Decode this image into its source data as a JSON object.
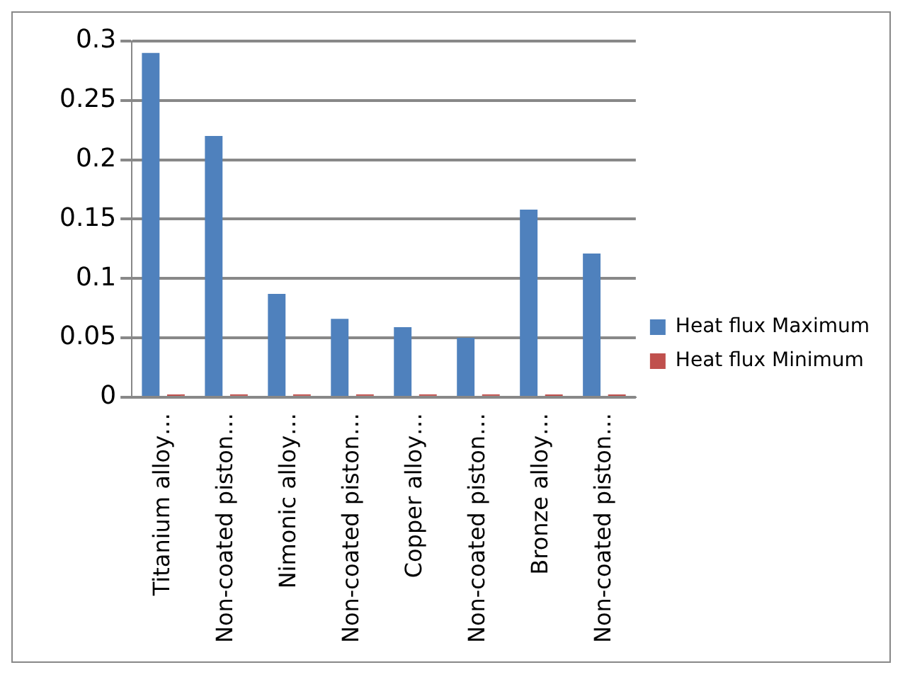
{
  "chart_data": {
    "type": "bar",
    "categories": [
      "Titanium alloy…",
      "Non-coated piston…",
      "Nimonic alloy…",
      "Non-coated piston…",
      "Copper alloy…",
      "Non-coated piston…",
      "Bronze alloy…",
      "Non-coated piston…"
    ],
    "series": [
      {
        "name": "Heat flux Maximum",
        "color": "#4f81bd",
        "values": [
          0.29,
          0.22,
          0.087,
          0.066,
          0.059,
          0.05,
          0.158,
          0.121
        ]
      },
      {
        "name": "Heat flux Minimum",
        "color": "#c0504d",
        "values": [
          0,
          0,
          0,
          0,
          0,
          0,
          0,
          0
        ]
      }
    ],
    "ylim": [
      0,
      0.3
    ],
    "yticks": [
      0,
      0.05,
      0.1,
      0.15,
      0.2,
      0.25,
      0.3
    ],
    "grid": "y",
    "legend": "right"
  }
}
